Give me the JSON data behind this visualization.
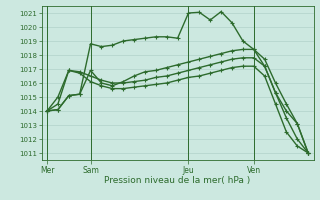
{
  "xlabel": "Pression niveau de la mer( hPa )",
  "ylim": [
    1010.5,
    1021.5
  ],
  "yticks": [
    1011,
    1012,
    1013,
    1014,
    1015,
    1016,
    1017,
    1018,
    1019,
    1020,
    1021
  ],
  "background_color": "#cce8e0",
  "line_color": "#2d6b2d",
  "tick_color": "#2d6b2d",
  "grid_color": "#aaccC4",
  "day_labels": [
    "Mer",
    "Sam",
    "Jeu",
    "Ven"
  ],
  "day_positions": [
    0,
    4,
    13,
    19
  ],
  "num_points": 25,
  "series": [
    [
      1014.0,
      1014.1,
      1015.1,
      1015.2,
      1018.8,
      1018.6,
      1018.7,
      1019.0,
      1019.1,
      1019.2,
      1019.3,
      1019.3,
      1019.2,
      1021.0,
      1021.05,
      1020.5,
      1021.1,
      1020.3,
      1019.0,
      1018.4,
      1017.2,
      1015.3,
      1014.0,
      1013.1,
      1011.0
    ],
    [
      1014.0,
      1014.1,
      1015.1,
      1015.2,
      1016.9,
      1016.0,
      1015.8,
      1016.1,
      1016.5,
      1016.8,
      1016.9,
      1017.1,
      1017.3,
      1017.5,
      1017.7,
      1017.9,
      1018.1,
      1018.3,
      1018.4,
      1018.4,
      1017.7,
      1016.0,
      1014.5,
      1013.1,
      1011.0
    ],
    [
      1014.0,
      1014.5,
      1016.9,
      1016.8,
      1016.5,
      1016.2,
      1016.0,
      1016.0,
      1016.1,
      1016.2,
      1016.4,
      1016.5,
      1016.7,
      1016.9,
      1017.1,
      1017.3,
      1017.5,
      1017.7,
      1017.8,
      1017.8,
      1017.2,
      1015.3,
      1013.5,
      1012.0,
      1011.0
    ],
    [
      1014.0,
      1015.0,
      1016.9,
      1016.7,
      1016.1,
      1015.8,
      1015.6,
      1015.6,
      1015.7,
      1015.8,
      1015.9,
      1016.0,
      1016.2,
      1016.4,
      1016.5,
      1016.7,
      1016.9,
      1017.1,
      1017.2,
      1017.2,
      1016.5,
      1014.5,
      1012.5,
      1011.5,
      1011.0
    ]
  ],
  "marker_size": 2.5,
  "line_width": 1.0
}
